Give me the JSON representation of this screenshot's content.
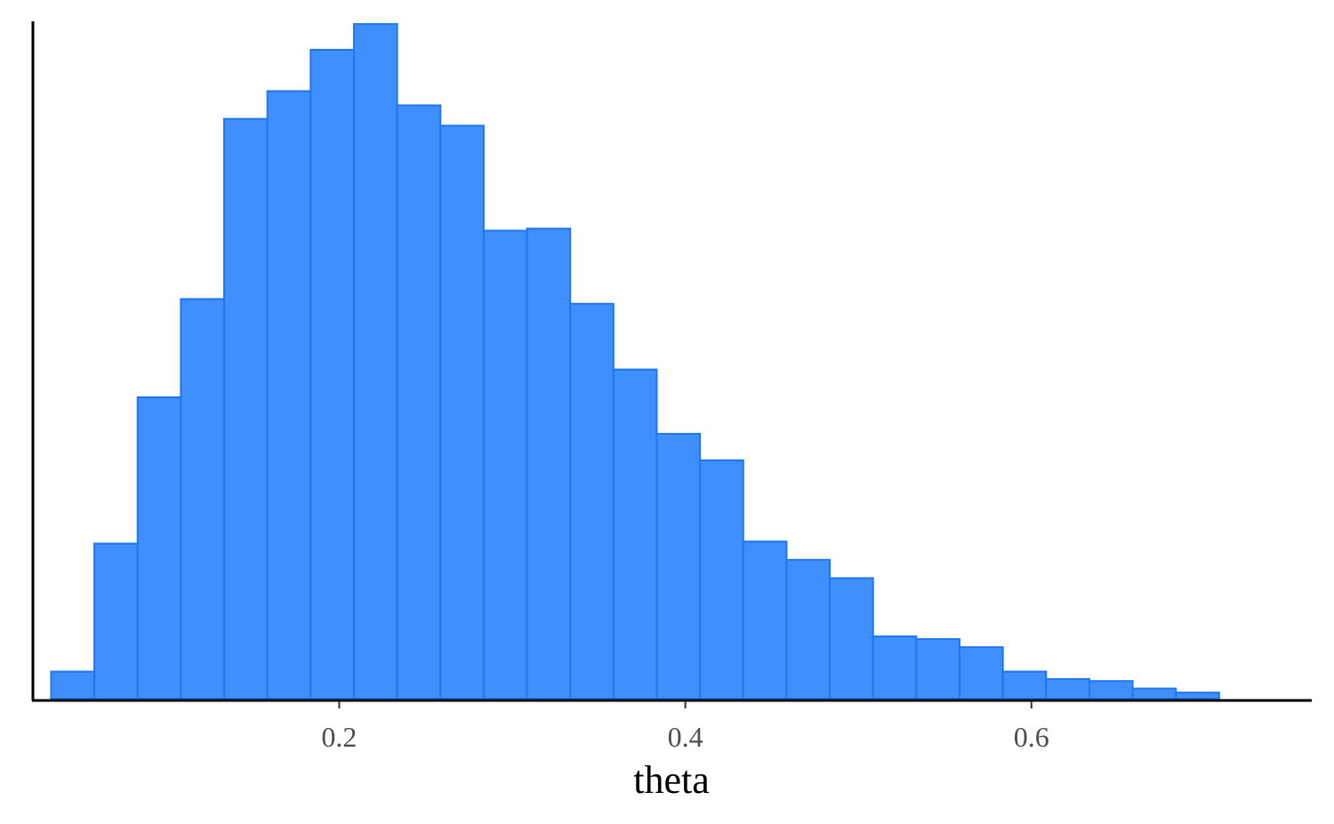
{
  "chart_data": {
    "type": "bar",
    "subtype": "histogram",
    "title": "",
    "xlabel": "theta",
    "ylabel": "",
    "xlim": [
      0.023,
      0.762
    ],
    "ylim": [
      0,
      1.0
    ],
    "y_axis_labels_shown": false,
    "grid": false,
    "legend": "none",
    "colors": {
      "fill": "#408FFF",
      "stroke": "#1F77F0",
      "axis": "#000000",
      "tick_label": "#4d4d4d"
    },
    "x_ticks": [
      0.2,
      0.4,
      0.6
    ],
    "x_tick_labels": [
      "0.2",
      "0.4",
      "0.6"
    ],
    "bin_edges": [
      0.0335,
      0.0585,
      0.0835,
      0.1085,
      0.1335,
      0.1585,
      0.1835,
      0.2085,
      0.2335,
      0.2585,
      0.2835,
      0.3085,
      0.3335,
      0.3585,
      0.3835,
      0.4085,
      0.4335,
      0.4585,
      0.4835,
      0.5085,
      0.5335,
      0.5585,
      0.5835,
      0.6085,
      0.6335,
      0.6585,
      0.6835,
      0.7085
    ],
    "relative_counts": [
      0.04,
      0.229,
      0.445,
      0.59,
      0.856,
      0.897,
      0.958,
      0.996,
      0.876,
      0.846,
      0.691,
      0.694,
      0.583,
      0.486,
      0.391,
      0.352,
      0.232,
      0.205,
      0.178,
      0.092,
      0.088,
      0.076,
      0.04,
      0.029,
      0.026,
      0.015,
      0.009
    ]
  }
}
